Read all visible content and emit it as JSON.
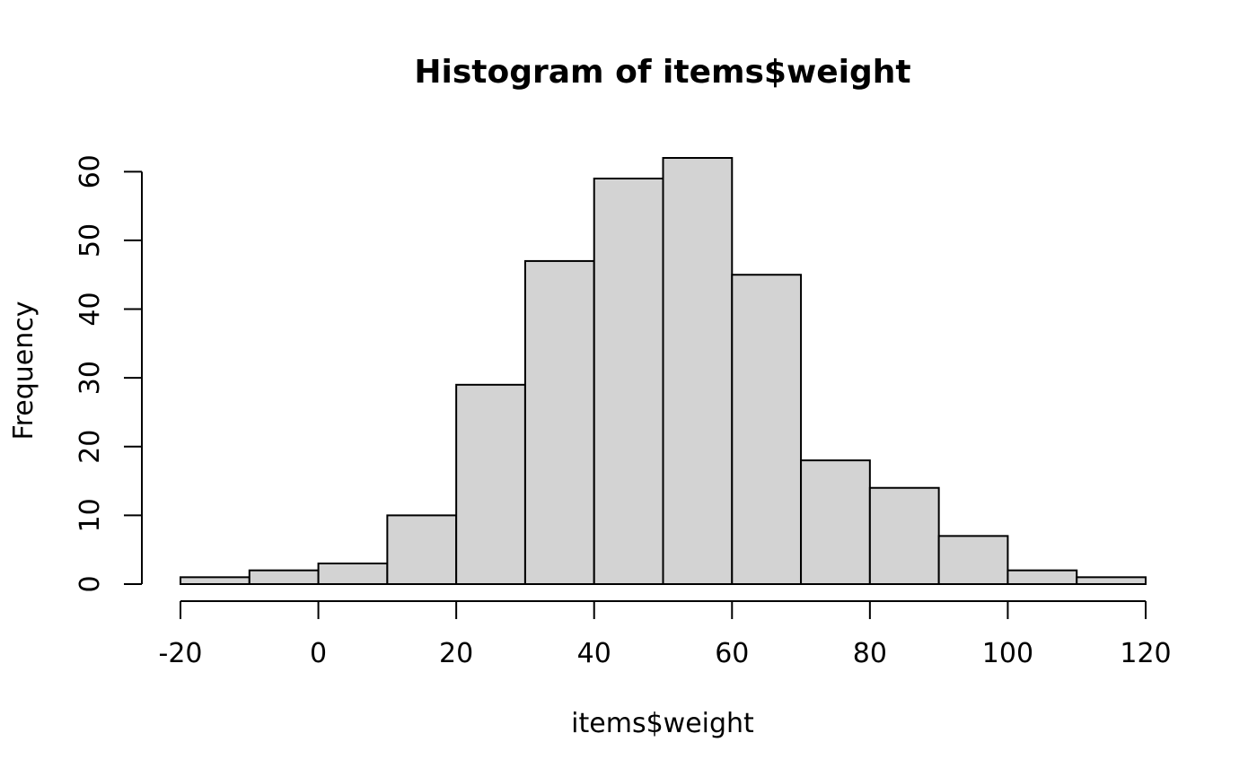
{
  "chart_data": {
    "type": "bar",
    "title": "Histogram of items$weight",
    "xlabel": "items$weight",
    "ylabel": "Frequency",
    "bin_edges": [
      -20,
      -10,
      0,
      10,
      20,
      30,
      40,
      50,
      60,
      70,
      80,
      90,
      100,
      110,
      120
    ],
    "values": [
      1,
      2,
      3,
      10,
      29,
      47,
      59,
      62,
      45,
      18,
      14,
      7,
      2,
      1
    ],
    "xlim": [
      -20,
      120
    ],
    "ylim": [
      0,
      62
    ],
    "x_ticks": [
      -20,
      0,
      20,
      40,
      60,
      80,
      100,
      120
    ],
    "x_tick_labels": [
      "-20",
      "0",
      "20",
      "40",
      "60",
      "80",
      "100",
      "120"
    ],
    "y_ticks": [
      0,
      10,
      20,
      30,
      40,
      50,
      60
    ],
    "y_tick_labels": [
      "0",
      "10",
      "20",
      "30",
      "40",
      "50",
      "60"
    ],
    "grid": false,
    "legend": "none",
    "bar_fill": "#d3d3d3",
    "bar_stroke": "#000000"
  }
}
